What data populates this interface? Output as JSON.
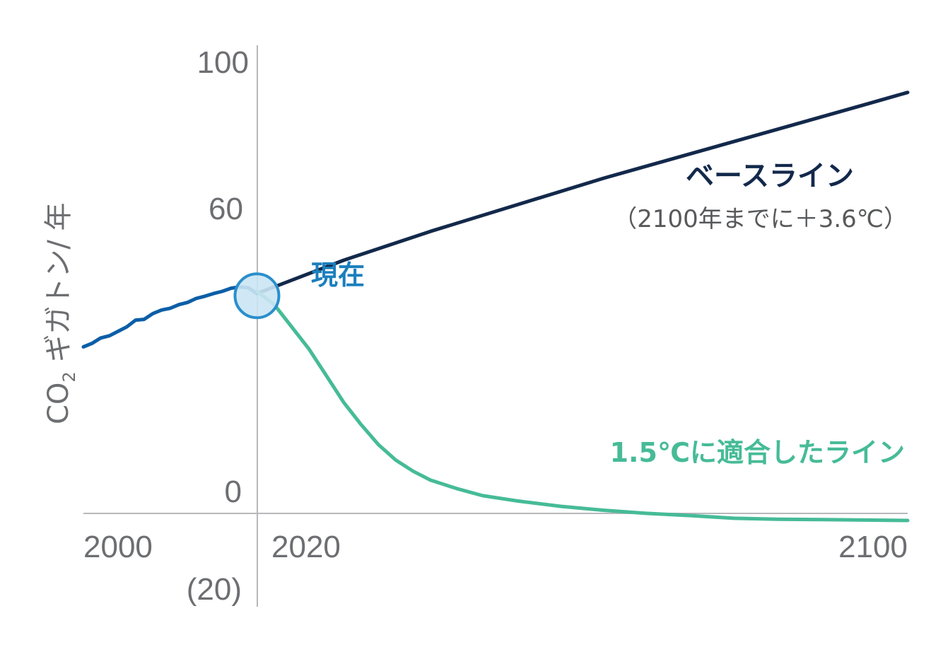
{
  "chart_data": {
    "type": "line",
    "ylabel_main": "CO",
    "ylabel_sub": "2",
    "ylabel_rest": " ギガトン/ 年",
    "x_ticks": [
      "2000",
      "2020",
      "2100"
    ],
    "x_tick_values": [
      2000,
      2020,
      2100
    ],
    "y_ticks": [
      "100",
      "60",
      "0",
      "(20)"
    ],
    "y_tick_values": [
      100,
      60,
      0,
      -20
    ],
    "xlim": [
      2000,
      2095
    ],
    "ylim": [
      -20,
      103
    ],
    "grid": false,
    "marker_label": "現在",
    "marker_point": {
      "x": 2020,
      "y": 49
    },
    "colors": {
      "historical": "#0c5ea7",
      "baseline": "#13294b",
      "aligned": "#46bb97",
      "marker_fill": "#cbe6f4",
      "marker_stroke": "#2a8fcc",
      "axis": "#b7b8bb"
    },
    "series": [
      {
        "key": "historical",
        "x": [
          2000,
          2001,
          2002,
          2003,
          2004,
          2005,
          2006,
          2007,
          2008,
          2009,
          2010,
          2011,
          2012,
          2013,
          2014,
          2015,
          2016,
          2017,
          2018,
          2019,
          2020
        ],
        "y": [
          37.5,
          38.3,
          39.5,
          40,
          41,
          42,
          43.5,
          43.7,
          45,
          45.8,
          46.2,
          47,
          47.5,
          48.4,
          48.9,
          49.5,
          50,
          50.7,
          51,
          50.8,
          49.5
        ]
      },
      {
        "key": "baseline",
        "name": "ベースライン",
        "note": "（2100年までに＋3.6℃）",
        "x": [
          2020,
          2030,
          2040,
          2050,
          2060,
          2070,
          2080,
          2090,
          2095
        ],
        "y": [
          49.5,
          57,
          63.5,
          69.5,
          75.5,
          81,
          86.5,
          92,
          94.8
        ]
      },
      {
        "key": "aligned",
        "name": "1.5℃に適合したライン",
        "x": [
          2020,
          2022,
          2024,
          2026,
          2028,
          2030,
          2032,
          2034,
          2036,
          2038,
          2040,
          2043,
          2046,
          2050,
          2055,
          2060,
          2065,
          2070,
          2075,
          2080,
          2085,
          2090,
          2095
        ],
        "y": [
          50,
          47,
          42,
          37,
          31,
          25,
          20,
          15.5,
          12,
          9.5,
          7.5,
          5.6,
          4,
          2.8,
          1.6,
          0.7,
          0,
          -0.5,
          -1.1,
          -1.3,
          -1.4,
          -1.5,
          -1.6
        ]
      }
    ]
  }
}
